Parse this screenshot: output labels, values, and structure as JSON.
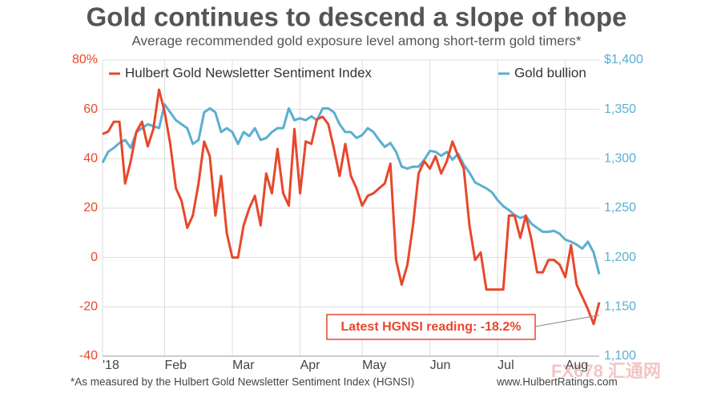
{
  "chart_data": {
    "type": "line",
    "title": "Gold continues to descend a slope of hope",
    "subtitle": "Average recommended gold exposure level among short-term gold timers*",
    "footnote": "*As measured by the Hulbert Gold Newsletter Sentiment Index (HGNSI)",
    "source": "www.HulbertRatings.com",
    "watermark": "FX678 汇通网",
    "annotation": "Latest HGNSI reading: -18.2%",
    "categories": [
      "'18",
      null,
      null,
      null,
      null,
      null,
      null,
      null,
      null,
      null,
      null,
      "Feb",
      null,
      null,
      null,
      null,
      null,
      null,
      null,
      null,
      null,
      null,
      null,
      "Mar",
      null,
      null,
      null,
      null,
      null,
      null,
      null,
      null,
      null,
      null,
      null,
      "Apr",
      null,
      null,
      null,
      null,
      null,
      null,
      null,
      null,
      null,
      null,
      "May",
      null,
      null,
      null,
      null,
      null,
      null,
      null,
      null,
      null,
      null,
      null,
      "Jun",
      null,
      null,
      null,
      null,
      null,
      null,
      null,
      null,
      null,
      null,
      null,
      "Jul",
      null,
      null,
      null,
      null,
      null,
      null,
      null,
      null,
      null,
      null,
      null,
      "Aug",
      null,
      null,
      null,
      null,
      null,
      null
    ],
    "series": [
      {
        "name": "Hulbert Gold Newsletter Sentiment Index",
        "color": "#e8472b",
        "axis": "y",
        "values": [
          50,
          51,
          55,
          55,
          30,
          39,
          51,
          55,
          45,
          52,
          68,
          59,
          46,
          28,
          23,
          12,
          17,
          30,
          47,
          41,
          17,
          33,
          10,
          0,
          0,
          13,
          20,
          25,
          13,
          34,
          26,
          44,
          26,
          21,
          52,
          26,
          47,
          46,
          56,
          57,
          54,
          44,
          33,
          46,
          33,
          28,
          21,
          25,
          26,
          28,
          30,
          38,
          -1,
          -11,
          -3,
          13,
          34,
          39,
          36,
          41,
          34,
          39,
          47,
          41,
          36,
          13,
          -1,
          2,
          -13,
          -13,
          -13,
          -13,
          17,
          17,
          8,
          17,
          7,
          -6,
          -6,
          -1,
          -1,
          -3,
          -8,
          5,
          -11,
          -16,
          -21,
          -27,
          -18.2
        ]
      },
      {
        "name": "Gold bullion",
        "color": "#5aafd0",
        "axis": "y2",
        "values": [
          1296,
          1307,
          1311,
          1316,
          1319,
          1311,
          1327,
          1331,
          1335,
          1333,
          1331,
          1355,
          1347,
          1339,
          1335,
          1331,
          1315,
          1319,
          1347,
          1351,
          1347,
          1327,
          1331,
          1327,
          1315,
          1327,
          1323,
          1331,
          1319,
          1321,
          1327,
          1331,
          1331,
          1351,
          1339,
          1341,
          1339,
          1343,
          1339,
          1351,
          1351,
          1347,
          1335,
          1327,
          1327,
          1321,
          1324,
          1331,
          1327,
          1319,
          1312,
          1316,
          1307,
          1292,
          1290,
          1292,
          1292,
          1299,
          1308,
          1307,
          1303,
          1307,
          1299,
          1305,
          1294,
          1286,
          1276,
          1273,
          1270,
          1266,
          1258,
          1252,
          1248,
          1243,
          1240,
          1242,
          1234,
          1230,
          1226,
          1226,
          1227,
          1224,
          1218,
          1216,
          1213,
          1209,
          1216,
          1205,
          1183
        ]
      }
    ],
    "ylim": [
      -40,
      80
    ],
    "yticks": [
      {
        "value": -40,
        "label": "-40"
      },
      {
        "value": -20,
        "label": "-20"
      },
      0,
      20,
      40,
      60,
      {
        "value": 80,
        "label": "80%"
      }
    ],
    "y2lim": [
      1100,
      1400
    ],
    "y2ticks": [
      {
        "value": 1100,
        "label": "1,100"
      },
      {
        "value": 1150,
        "label": "1,150"
      },
      {
        "value": 1200,
        "label": "1,200"
      },
      {
        "value": 1250,
        "label": "1,250"
      },
      {
        "value": 1300,
        "label": "1,300"
      },
      {
        "value": 1350,
        "label": "1,350"
      },
      {
        "value": 1400,
        "label": "$1,400"
      }
    ],
    "grid": true
  }
}
